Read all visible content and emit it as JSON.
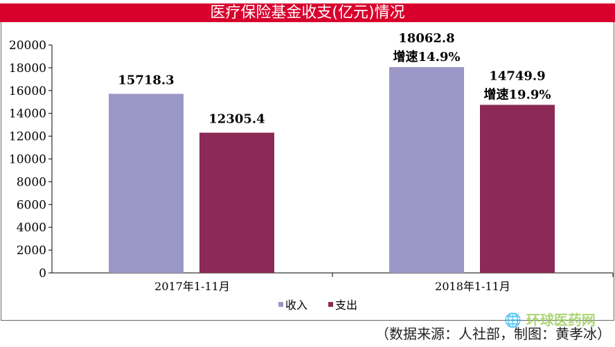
{
  "chart_data": {
    "type": "bar",
    "title": "医疗保险基金收支(亿元)情况",
    "categories": [
      "2017年1-11月",
      "2018年1-11月"
    ],
    "series": [
      {
        "name": "收入",
        "color": "#9b97c6",
        "values": [
          15718.3,
          18062.8
        ],
        "labels": [
          "15718.3",
          "18062.8"
        ],
        "growth": [
          "",
          "增速14.9%"
        ]
      },
      {
        "name": "支出",
        "color": "#8b2a56",
        "values": [
          12305.4,
          14749.9
        ],
        "labels": [
          "12305.4",
          "14749.9"
        ],
        "growth": [
          "",
          "增速19.9%"
        ]
      }
    ],
    "ylim": [
      0,
      20000
    ],
    "yticks": [
      0,
      2000,
      4000,
      6000,
      8000,
      10000,
      12000,
      14000,
      16000,
      18000,
      20000
    ],
    "legend": "bottom",
    "grid": false
  },
  "source": "（数据来源：人社部，制图：黄孝冰）",
  "watermark": "环球医药网"
}
